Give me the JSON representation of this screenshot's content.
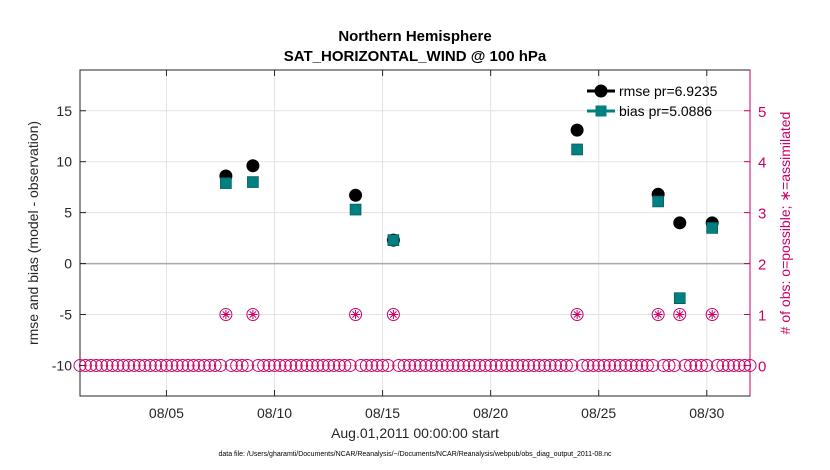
{
  "chart_data": {
    "type": "scatter",
    "title": "Northern Hemisphere",
    "subtitle": "SAT_HORIZONTAL_WIND @ 100 hPa",
    "xlabel": "Aug.01,2011 00:00:00 start",
    "ylabel": "rmse and bias (model - observation)",
    "ylabel_right": "# of obs: o=possible; ∗=assimilated",
    "xlim": [
      1,
      32
    ],
    "ylim": [
      -13,
      19
    ],
    "ylim_right": [
      -0.6,
      5.8
    ],
    "x_ticks": [
      5,
      10,
      15,
      20,
      25,
      30
    ],
    "x_tick_labels": [
      "08/05",
      "08/10",
      "08/15",
      "08/20",
      "08/25",
      "08/30"
    ],
    "y_ticks": [
      -10,
      -5,
      0,
      5,
      10,
      15
    ],
    "y_ticks_right": [
      0,
      1,
      2,
      3,
      4,
      5
    ],
    "grid": true,
    "legend_position": "top-right",
    "series": [
      {
        "name": "rmse pr=6.9235",
        "color": "#000000",
        "marker": "circle",
        "x": [
          7.75,
          9.0,
          13.75,
          15.5,
          24.0,
          27.75,
          28.75,
          30.25
        ],
        "y": [
          8.6,
          9.6,
          6.7,
          2.3,
          13.1,
          6.8,
          4.0,
          4.0
        ]
      },
      {
        "name": "bias pr=5.0886",
        "color": "#008080",
        "marker": "square",
        "x": [
          7.75,
          9.0,
          13.75,
          15.5,
          24.0,
          27.75,
          28.75,
          30.25
        ],
        "y": [
          7.9,
          8.0,
          5.3,
          2.3,
          11.2,
          6.1,
          -3.4,
          3.5
        ]
      },
      {
        "name": "possible obs",
        "color": "#cc0066",
        "marker": "open-circle",
        "axis": "right",
        "start": 1.0,
        "step": 0.25,
        "count": 125,
        "value": 0,
        "nonzero_x": [
          7.75,
          9.0,
          13.75,
          15.5,
          24.0,
          27.75,
          28.75,
          30.25
        ],
        "nonzero_value": 1
      },
      {
        "name": "assimilated obs",
        "color": "#cc0066",
        "marker": "asterisk",
        "axis": "right",
        "x": [
          7.75,
          9.0,
          13.75,
          15.5,
          24.0,
          27.75,
          28.75,
          30.25
        ],
        "y": [
          1,
          1,
          1,
          1,
          1,
          1,
          1,
          1
        ]
      }
    ],
    "footnote": "data file: /Users/gharamti/Documents/NCAR/Reanalysis/~/Documents/NCAR/Reanalysis/webpub/obs_diag_output_2011-08.nc"
  }
}
